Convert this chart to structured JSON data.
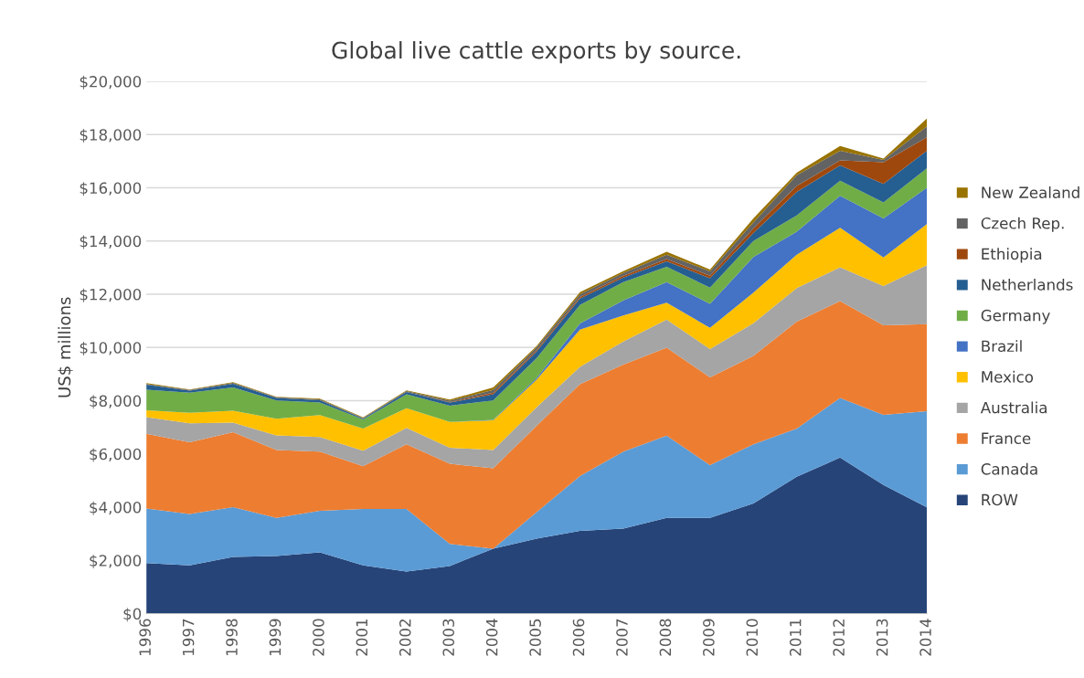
{
  "chart_data": {
    "type": "area",
    "stacked": true,
    "title": "Global live cattle exports by source.",
    "ylabel": "US$ millions",
    "categories": [
      "1996",
      "1997",
      "1998",
      "1999",
      "2000",
      "2001",
      "2002",
      "2003",
      "2004",
      "2005",
      "2006",
      "2007",
      "2008",
      "2009",
      "2010",
      "2011",
      "2012",
      "2013",
      "2014"
    ],
    "ylim": [
      0,
      20000
    ],
    "yticks": [
      {
        "value": 0,
        "label": "$0"
      },
      {
        "value": 2000,
        "label": "$2,000"
      },
      {
        "value": 4000,
        "label": "$4,000"
      },
      {
        "value": 6000,
        "label": "$6,000"
      },
      {
        "value": 8000,
        "label": "$8,000"
      },
      {
        "value": 10000,
        "label": "$10,000"
      },
      {
        "value": 12000,
        "label": "$12,000"
      },
      {
        "value": 14000,
        "label": "$14,000"
      },
      {
        "value": 16000,
        "label": "$16,000"
      },
      {
        "value": 18000,
        "label": "$18,000"
      },
      {
        "value": 20000,
        "label": "$20,000"
      }
    ],
    "grid": "y",
    "legend": "right",
    "series": [
      {
        "name": "ROW",
        "color": "#264478",
        "values": [
          1900,
          1810,
          2130,
          2160,
          2300,
          1810,
          1580,
          1790,
          2440,
          2820,
          3110,
          3190,
          3600,
          3600,
          4140,
          5140,
          5860,
          4830,
          3990
        ]
      },
      {
        "name": "Canada",
        "color": "#5b9bd5",
        "values": [
          2050,
          1930,
          1870,
          1440,
          1560,
          2120,
          2350,
          830,
          0,
          990,
          2060,
          2900,
          3090,
          1980,
          2220,
          1810,
          2240,
          2640,
          3620
        ]
      },
      {
        "name": "France",
        "color": "#ed7d31",
        "values": [
          2810,
          2700,
          2820,
          2550,
          2230,
          1610,
          2430,
          3010,
          3020,
          3250,
          3450,
          3270,
          3300,
          3300,
          3320,
          4020,
          3640,
          3360,
          3270
        ]
      },
      {
        "name": "Australia",
        "color": "#a5a5a5",
        "values": [
          620,
          710,
          360,
          550,
          550,
          580,
          620,
          600,
          690,
          690,
          650,
          860,
          1060,
          1060,
          1230,
          1260,
          1270,
          1480,
          2210
        ]
      },
      {
        "name": "Mexico",
        "color": "#ffc000",
        "values": [
          260,
          400,
          440,
          620,
          820,
          830,
          740,
          970,
          1110,
          1040,
          1400,
          980,
          630,
          800,
          1150,
          1260,
          1490,
          1070,
          1550
        ]
      },
      {
        "name": "Brazil",
        "color": "#4472c4",
        "values": [
          0,
          0,
          0,
          0,
          0,
          0,
          0,
          0,
          20,
          60,
          230,
          570,
          780,
          900,
          1340,
          860,
          1200,
          1470,
          1360
        ]
      },
      {
        "name": "Germany",
        "color": "#70ad47",
        "values": [
          770,
          750,
          880,
          690,
          470,
          350,
          520,
          610,
          730,
          750,
          700,
          690,
          570,
          610,
          600,
          610,
          570,
          600,
          730
        ]
      },
      {
        "name": "Netherlands",
        "color": "#255e91",
        "values": [
          190,
          80,
          140,
          90,
          90,
          30,
          90,
          120,
          230,
          250,
          240,
          170,
          210,
          350,
          300,
          890,
          570,
          700,
          660
        ]
      },
      {
        "name": "Ethiopia",
        "color": "#9e480e",
        "values": [
          0,
          0,
          0,
          0,
          0,
          0,
          0,
          20,
          60,
          50,
          60,
          70,
          80,
          100,
          170,
          220,
          190,
          810,
          510
        ]
      },
      {
        "name": "Czech Rep.",
        "color": "#636363",
        "values": [
          30,
          20,
          30,
          30,
          30,
          20,
          30,
          50,
          100,
          100,
          100,
          100,
          170,
          160,
          230,
          400,
          360,
          90,
          400
        ]
      },
      {
        "name": "New Zealand",
        "color": "#997300",
        "values": [
          30,
          20,
          30,
          20,
          30,
          20,
          30,
          40,
          100,
          50,
          80,
          70,
          110,
          70,
          150,
          100,
          180,
          50,
          300
        ]
      }
    ]
  }
}
